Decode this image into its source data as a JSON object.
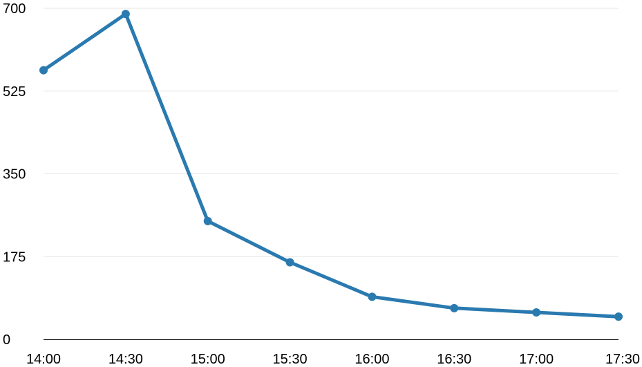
{
  "chart_data": {
    "type": "line",
    "title": "",
    "xlabel": "",
    "ylabel": "",
    "categories": [
      "14:00",
      "14:30",
      "15:00",
      "15:30",
      "16:00",
      "16:30",
      "17:00",
      "17:30"
    ],
    "series": [
      {
        "values": [
          569,
          688,
          250,
          163,
          90,
          66,
          57,
          48
        ]
      }
    ],
    "ylim": [
      0,
      700
    ],
    "yticks": [
      0,
      175,
      350,
      525,
      700
    ],
    "grid": true,
    "legend": "none",
    "colors": {
      "line": "#2a7ab0",
      "grid": "#e6e6e6",
      "axis": "#000000"
    }
  }
}
